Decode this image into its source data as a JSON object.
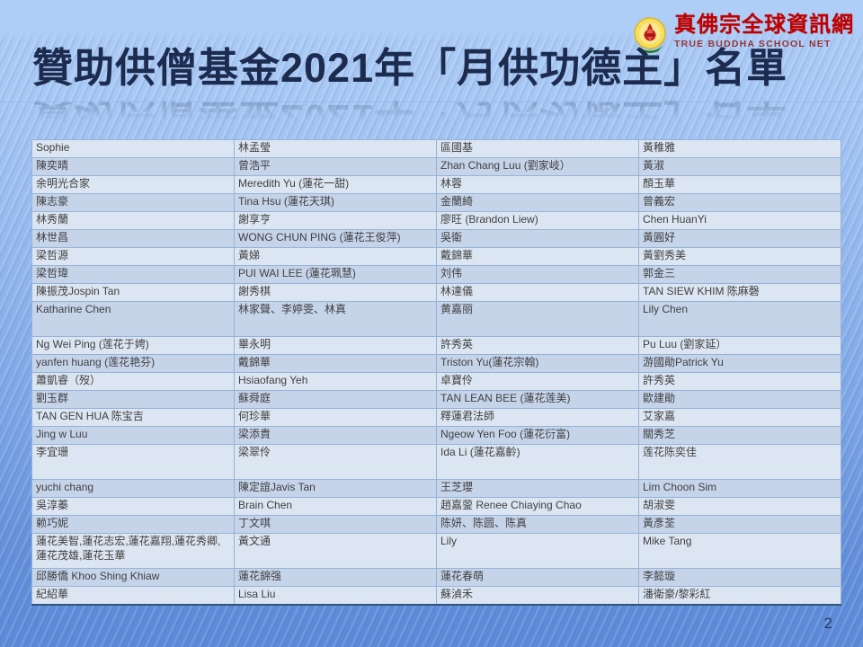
{
  "slide": {
    "title": "贊助供僧基金2021年「月供功德主」名單",
    "page_number": "2"
  },
  "logo": {
    "site_name_zh": "真佛宗全球資訊網",
    "site_name_en": "TRUE BUDDHA SCHOOL NET",
    "emblem_icon": "lotus-crest-icon",
    "text_color_zh": "#c00000",
    "text_color_en": "#993333"
  },
  "colors": {
    "title_text": "#1c2b4e",
    "row_odd": "#dce6f2",
    "row_even": "#c6d4ea",
    "table_border": "#95b3d7",
    "background_top": "#adccf6",
    "background_bottom": "#5a89d6"
  },
  "table": {
    "columns": 4,
    "rows": [
      {
        "cells": [
          "Sophie",
          "林孟瑩",
          "區國基",
          "黃稚雅"
        ]
      },
      {
        "cells": [
          "陳奕晴",
          "曾浩平",
          "Zhan Chang Luu (劉家岐）",
          "黃淑"
        ]
      },
      {
        "cells": [
          "余明光合家",
          "Meredith Yu (蓮花一甜)",
          "林蓉",
          "顏玉華"
        ]
      },
      {
        "cells": [
          "陳志豪",
          "Tina Hsu (蓮花天琪)",
          "金蘭綺",
          "曾義宏"
        ]
      },
      {
        "cells": [
          "林秀蘭",
          "謝享亨",
          "廖旺 (Brandon Liew)",
          "Chen HuanYi"
        ]
      },
      {
        "cells": [
          "林世昌",
          "WONG CHUN PING (蓮花王俊萍)",
          "吳衛",
          "黃圓好"
        ]
      },
      {
        "cells": [
          "梁哲源",
          "黃娣",
          "戴錦華",
          "黃劉秀美"
        ]
      },
      {
        "cells": [
          "梁哲瑋",
          "PUI WAI LEE (蓮花珮慧)",
          "刘伟",
          "郭金三"
        ]
      },
      {
        "cells": [
          "陳振茂Jospin Tan",
          "謝秀棋",
          "林達儀",
          "TAN SIEW KHIM 陈麻磬"
        ]
      },
      {
        "cells": [
          "Katharine Chen",
          "林家聲、李婷雯、林真",
          "黄嘉丽",
          "Lily Chen"
        ],
        "tall": true
      },
      {
        "cells": [
          "Ng Wei Ping (莲花于娉)",
          "畢永明",
          "許秀英",
          "Pu Luu (劉家延）"
        ]
      },
      {
        "cells": [
          "yanfen huang (莲花艳芬)",
          "戴錦華",
          "Triston Yu(蓮花宗翰)",
          "游國勛Patrick Yu"
        ]
      },
      {
        "cells": [
          "蕭凱睿（歿）",
          "Hsiaofang Yeh",
          "卓寶伶",
          "許秀英"
        ]
      },
      {
        "cells": [
          "劉玉群",
          "蘇舜庭",
          "TAN LEAN BEE (蓮花莲美)",
          "歐建勛"
        ]
      },
      {
        "cells": [
          "TAN GEN HUA 陈宝吉",
          "何珍華",
          "釋蓮君法師",
          "艾家嘉"
        ]
      },
      {
        "cells": [
          "Jing w Luu",
          "梁添貴",
          "Ngeow Yen Foo (蓮花衍富)",
          "關秀芝"
        ]
      },
      {
        "cells": [
          "李宜珊",
          "梁翠伶",
          "Ida Li (蓮花嘉齡)",
          "莲花陈奕佳"
        ],
        "tall": true
      },
      {
        "cells": [
          "yuchi chang",
          "陳定誼Javis Tan",
          "王芝瓔",
          "Lim Choon Sim"
        ]
      },
      {
        "cells": [
          "吳淳蓁",
          "Brain Chen",
          "趙嘉蓥 Renee Chiaying Chao",
          "胡淑雯"
        ]
      },
      {
        "cells": [
          "赖巧妮",
          "丁文唭",
          "陈妍、陈圆、陈真",
          "黃彥荃"
        ]
      },
      {
        "cells": [
          "蓮花美智,蓮花志宏,蓮花嘉翔,蓮花秀卿,蓮花茂雄,蓮花玉華",
          "黃文通",
          "Lily",
          "Mike Tang"
        ],
        "tall": true
      },
      {
        "cells": [
          "邱勝僑 Khoo Shing Khiaw",
          "蓮花錦强",
          "蓮花春萌",
          "李懿璇"
        ]
      },
      {
        "cells": [
          "紀紹華",
          "Lisa Liu",
          "蘇湞禾",
          "潘衛豪/黎彩紅"
        ]
      }
    ]
  }
}
